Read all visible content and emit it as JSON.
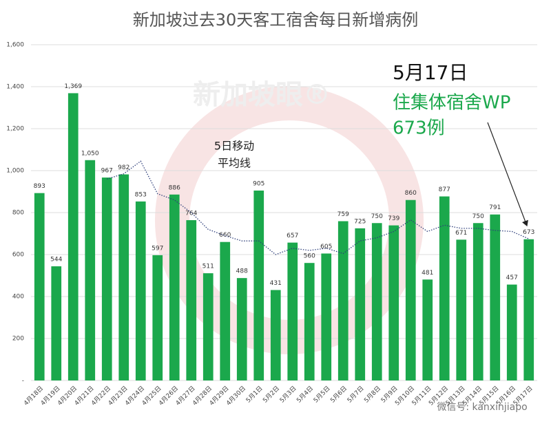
{
  "chart_data": {
    "type": "bar",
    "title": "新加坡过去30天客工宿舍每日新增病例",
    "categories": [
      "4月18日",
      "4月19日",
      "4月20日",
      "4月21日",
      "4月22日",
      "4月23日",
      "4月24日",
      "4月25日",
      "4月26日",
      "4月27日",
      "4月28日",
      "4月29日",
      "4月30日",
      "5月1日",
      "5月2日",
      "5月3日",
      "5月4日",
      "5月5日",
      "5月6日",
      "5月7日",
      "5月8日",
      "5月9日",
      "5月10日",
      "5月11日",
      "5月12日",
      "5月13日",
      "5月14日",
      "5月15日",
      "5月16日",
      "5月17日"
    ],
    "series": [
      {
        "type": "bar",
        "color": "#1ba84c",
        "values": [
          893,
          544,
          1369,
          1050,
          967,
          982,
          853,
          597,
          886,
          764,
          511,
          660,
          488,
          905,
          431,
          657,
          560,
          605,
          759,
          725,
          750,
          739,
          860,
          481,
          877,
          671,
          750,
          791,
          457,
          673
        ],
        "value_labels": [
          "893",
          "544",
          "1,369",
          "1,050",
          "967",
          "982",
          "853",
          "597",
          "886",
          "764",
          "511",
          "660",
          "488",
          "905",
          "431",
          "657",
          "560",
          "605",
          "759",
          "725",
          "750",
          "739",
          "860",
          "481",
          "877",
          "671",
          "750",
          "791",
          "457",
          "673"
        ]
      },
      {
        "type": "line",
        "color": "#2d3e7a",
        "style": "dotted",
        "values": [
          null,
          null,
          null,
          null,
          960,
          985,
          1045,
          890,
          860,
          800,
          720,
          690,
          665,
          665,
          600,
          630,
          620,
          630,
          605,
          665,
          680,
          710,
          765,
          710,
          740,
          725,
          725,
          715,
          710,
          675
        ]
      }
    ],
    "ylim": [
      0,
      1600
    ],
    "yticks": [
      {
        "value": 0,
        "label": "-"
      },
      200,
      400,
      600,
      800,
      {
        "value": 1000,
        "label": "1,000"
      },
      {
        "value": 1200,
        "label": "1,200"
      },
      {
        "value": 1400,
        "label": "1,400"
      },
      {
        "value": 1600,
        "label": "1,600"
      }
    ],
    "grid": true,
    "annotations": {
      "moving_average": [
        "5日移动",
        "平均线"
      ],
      "callout": [
        "5月17日",
        "住集体宿舍WP",
        "673例"
      ]
    },
    "watermark": [
      "新加坡眼®",
      "微信号: kanxinjiapo"
    ]
  }
}
